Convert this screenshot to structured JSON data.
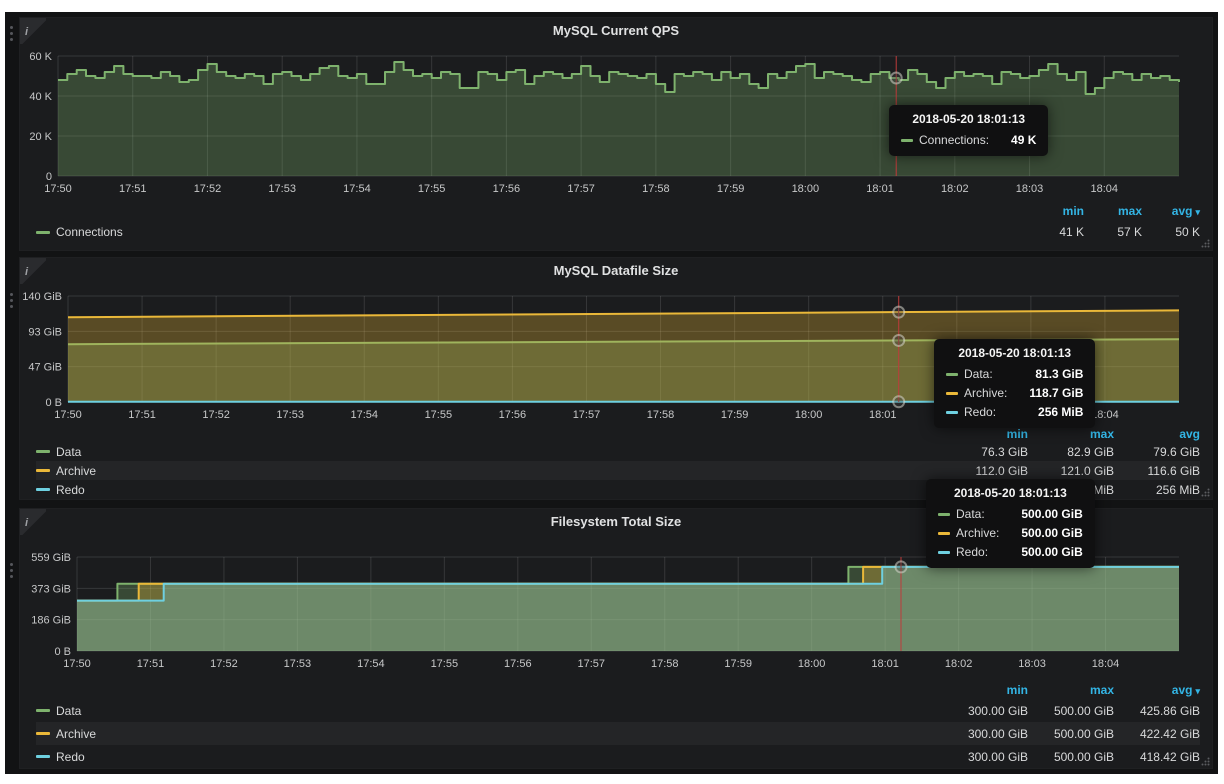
{
  "colors": {
    "dashboard_bg": "#121314",
    "panel_bg": "#1b1c1e",
    "grid": "rgba(255,255,255,0.12)",
    "tick_text": "#c7c8c9",
    "legend_header_blue": "#33b5e5",
    "crosshair_red": "#bf3b3b",
    "series_green": "#7eb26d",
    "series_orange": "#eab839",
    "series_cyan": "#6ed0e0"
  },
  "icons": {
    "info_icon": "i",
    "caret_down": "▾"
  },
  "chart_data": [
    {
      "type": "line",
      "title": "MySQL Current QPS",
      "legend_position": "bottom",
      "grid": true,
      "step": true,
      "x_range": [
        0,
        15
      ],
      "x_tick_labels": [
        "17:50",
        "17:51",
        "17:52",
        "17:53",
        "17:54",
        "17:55",
        "17:56",
        "17:57",
        "17:58",
        "17:59",
        "18:00",
        "18:01",
        "18:02",
        "18:03",
        "18:04"
      ],
      "y_unit": "K queries",
      "y_range": [
        0,
        60
      ],
      "y_ticks": [
        {
          "v": 0,
          "label": "0"
        },
        {
          "v": 20,
          "label": "20 K"
        },
        {
          "v": 40,
          "label": "40 K"
        },
        {
          "v": 60,
          "label": "60 K"
        }
      ],
      "series": [
        {
          "name": "Connections",
          "color": "#7eb26d",
          "values": [
            48,
            51,
            53,
            50,
            49,
            52,
            55,
            51,
            50,
            50,
            49,
            52,
            50,
            47,
            48,
            53,
            56,
            52,
            50,
            49,
            51,
            50,
            46,
            51,
            52,
            50,
            48,
            51,
            54,
            55,
            50,
            49,
            51,
            46,
            46,
            52,
            57,
            53,
            50,
            51,
            49,
            52,
            51,
            44,
            44,
            52,
            51,
            48,
            52,
            53,
            46,
            50,
            52,
            51,
            49,
            51,
            55,
            50,
            47,
            52,
            51,
            50,
            49,
            51,
            46,
            42,
            51,
            50,
            52,
            51,
            48,
            52,
            49,
            51,
            46,
            44,
            51,
            49,
            52,
            55,
            56,
            49,
            52,
            51,
            50,
            48,
            47,
            51,
            52,
            49,
            48,
            53,
            51,
            47,
            44,
            49,
            52,
            50,
            51,
            50,
            46,
            52,
            51,
            49,
            50,
            53,
            56,
            51,
            48,
            52,
            41,
            44,
            49,
            52,
            51,
            48,
            51,
            49,
            50,
            48,
            47
          ],
          "stats": {
            "min": "41 K",
            "max": "57 K",
            "avg": "50 K"
          }
        }
      ],
      "crosshair": {
        "x": 11.216,
        "time": "2018-05-20 18:01:13",
        "points": [
          {
            "y": 49,
            "color": "#7eb26d"
          }
        ]
      }
    },
    {
      "type": "line",
      "title": "MySQL Datafile Size",
      "legend_position": "bottom",
      "grid": true,
      "step": false,
      "x_range": [
        0,
        15
      ],
      "x_tick_labels": [
        "17:50",
        "17:51",
        "17:52",
        "17:53",
        "17:54",
        "17:55",
        "17:56",
        "17:57",
        "17:58",
        "17:59",
        "18:00",
        "18:01",
        "18:02",
        "18:03",
        "18:04"
      ],
      "y_unit": "GiB",
      "y_range": [
        0,
        140
      ],
      "y_ticks": [
        {
          "v": 0,
          "label": "0 B"
        },
        {
          "v": 46.7,
          "label": "47 GiB"
        },
        {
          "v": 93.3,
          "label": "93 GiB"
        },
        {
          "v": 140,
          "label": "140 GiB"
        }
      ],
      "series": [
        {
          "name": "Data",
          "color": "#7eb26d",
          "points": [
            [
              0,
              76.3
            ],
            [
              15,
              82.9
            ]
          ],
          "stats": {
            "min": "76.3 GiB",
            "max": "82.9 GiB",
            "avg": "79.6 GiB"
          }
        },
        {
          "name": "Archive",
          "color": "#eab839",
          "points": [
            [
              0,
              112.0
            ],
            [
              15,
              121.0
            ]
          ],
          "stats": {
            "min": "112.0 GiB",
            "max": "121.0 GiB",
            "avg": "116.6 GiB"
          }
        },
        {
          "name": "Redo",
          "color": "#6ed0e0",
          "points": [
            [
              0,
              0.25
            ],
            [
              15,
              0.25
            ]
          ],
          "stats": {
            "min": "256 MiB",
            "max": "256 MiB",
            "avg": "256 MiB"
          }
        }
      ],
      "crosshair": {
        "x": 11.216,
        "time": "2018-05-20 18:01:13",
        "points": [
          {
            "y": 81.3,
            "color": "#7eb26d"
          },
          {
            "y": 118.7,
            "color": "#eab839"
          },
          {
            "y": 0.25,
            "color": "#6ed0e0"
          }
        ]
      }
    },
    {
      "type": "line",
      "title": "Filesystem Total Size",
      "legend_position": "bottom",
      "grid": true,
      "step": true,
      "x_range": [
        0,
        15
      ],
      "x_tick_labels": [
        "17:50",
        "17:51",
        "17:52",
        "17:53",
        "17:54",
        "17:55",
        "17:56",
        "17:57",
        "17:58",
        "17:59",
        "18:00",
        "18:01",
        "18:02",
        "18:03",
        "18:04"
      ],
      "y_unit": "GiB",
      "y_range": [
        0,
        559
      ],
      "y_ticks": [
        {
          "v": 0,
          "label": "0 B"
        },
        {
          "v": 186.3,
          "label": "186 GiB"
        },
        {
          "v": 372.7,
          "label": "373 GiB"
        },
        {
          "v": 559,
          "label": "559 GiB"
        }
      ],
      "series": [
        {
          "name": "Data",
          "color": "#7eb26d",
          "points": [
            [
              0,
              300
            ],
            [
              0.55,
              400
            ],
            [
              10.5,
              500
            ]
          ],
          "stats": {
            "min": "300.00 GiB",
            "max": "500.00 GiB",
            "avg": "425.86 GiB"
          }
        },
        {
          "name": "Archive",
          "color": "#eab839",
          "points": [
            [
              0,
              300
            ],
            [
              0.84,
              400
            ],
            [
              10.7,
              500
            ]
          ],
          "stats": {
            "min": "300.00 GiB",
            "max": "500.00 GiB",
            "avg": "422.42 GiB"
          }
        },
        {
          "name": "Redo",
          "color": "#6ed0e0",
          "points": [
            [
              0,
              300
            ],
            [
              1.18,
              400
            ],
            [
              10.96,
              500
            ]
          ],
          "stats": {
            "min": "300.00 GiB",
            "max": "500.00 GiB",
            "avg": "418.42 GiB"
          }
        }
      ],
      "crosshair": {
        "x": 11.216,
        "time": "2018-05-20 18:01:13",
        "points": [
          {
            "y": 500,
            "color": "#6ed0e0"
          }
        ]
      }
    }
  ],
  "panels": [
    {
      "title": "MySQL Current QPS",
      "tooltip": {
        "time": "2018-05-20 18:01:13",
        "rows": [
          {
            "label": "Connections:",
            "value": "49 K"
          }
        ]
      },
      "legend": {
        "headers": [
          "min",
          "max",
          "avg"
        ],
        "rows": [
          {
            "label": "Connections",
            "values": [
              "41 K",
              "57 K",
              "50 K"
            ]
          }
        ]
      }
    },
    {
      "title": "MySQL Datafile Size",
      "tooltip": {
        "time": "2018-05-20 18:01:13",
        "rows": [
          {
            "label": "Data:",
            "value": "81.3 GiB"
          },
          {
            "label": "Archive:",
            "value": "118.7 GiB"
          },
          {
            "label": "Redo:",
            "value": "256 MiB"
          }
        ]
      },
      "legend": {
        "headers": [
          "min",
          "max",
          "avg"
        ],
        "rows": [
          {
            "label": "Data",
            "values": [
              "76.3 GiB",
              "82.9 GiB",
              "79.6 GiB"
            ]
          },
          {
            "label": "Archive",
            "values": [
              "112.0 GiB",
              "121.0 GiB",
              "116.6 GiB"
            ]
          },
          {
            "label": "Redo",
            "values": [
              "256 MiB",
              "256 MiB",
              "256 MiB"
            ]
          }
        ]
      }
    },
    {
      "title": "Filesystem Total Size",
      "tooltip": {
        "time": "2018-05-20 18:01:13",
        "rows": [
          {
            "label": "Data:",
            "value": "500.00 GiB"
          },
          {
            "label": "Archive:",
            "value": "500.00 GiB"
          },
          {
            "label": "Redo:",
            "value": "500.00 GiB"
          }
        ]
      },
      "legend": {
        "headers": [
          "min",
          "max",
          "avg"
        ],
        "rows": [
          {
            "label": "Data",
            "values": [
              "300.00 GiB",
              "500.00 GiB",
              "425.86 GiB"
            ]
          },
          {
            "label": "Archive",
            "values": [
              "300.00 GiB",
              "500.00 GiB",
              "422.42 GiB"
            ]
          },
          {
            "label": "Redo",
            "values": [
              "300.00 GiB",
              "500.00 GiB",
              "418.42 GiB"
            ]
          }
        ]
      }
    }
  ]
}
